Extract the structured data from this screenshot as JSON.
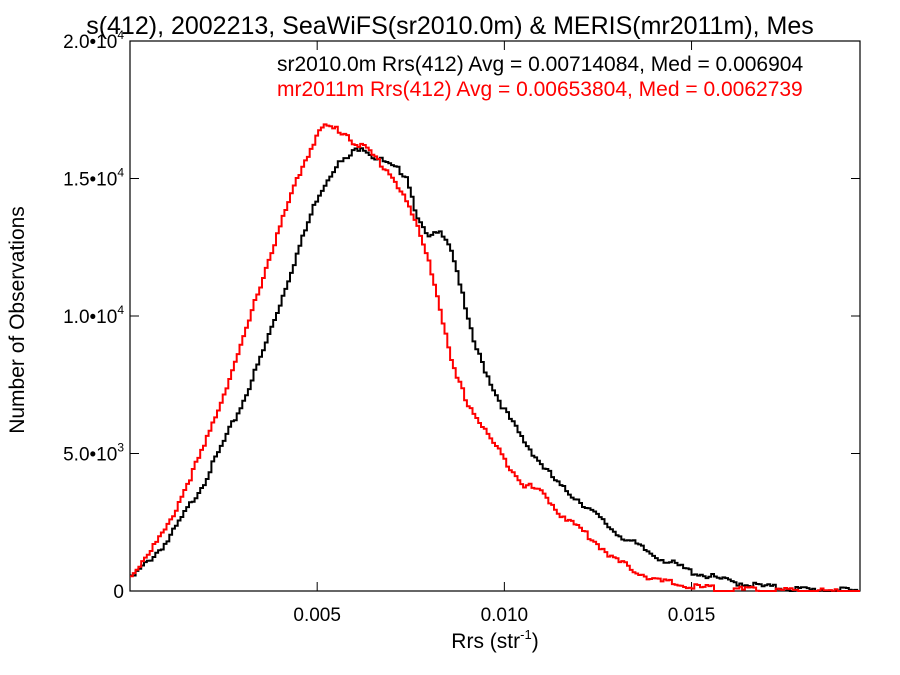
{
  "chart_data": {
    "type": "line",
    "title": "s(412), 2002213, SeaWiFS(sr2010.0m) & MERIS(mr2011m), Mes",
    "xlabel": "Rrs (str",
    "xlabel_sup": "-1",
    "xlabel_end": ")",
    "ylabel": "Number of Observations",
    "xlim": [
      0.0,
      0.0195
    ],
    "ylim": [
      0,
      20000
    ],
    "xticks": [
      {
        "value": 0.005,
        "label": "0.005"
      },
      {
        "value": 0.01,
        "label": "0.010"
      },
      {
        "value": 0.015,
        "label": "0.015"
      }
    ],
    "yticks": [
      {
        "value": 0,
        "mant": "0",
        "exp": ""
      },
      {
        "value": 5000,
        "mant": "5.0•10",
        "exp": "3"
      },
      {
        "value": 10000,
        "mant": "1.0•10",
        "exp": "4"
      },
      {
        "value": 15000,
        "mant": "1.5•10",
        "exp": "4"
      },
      {
        "value": 20000,
        "mant": "2.0•10",
        "exp": "4"
      }
    ],
    "grid": false,
    "series": [
      {
        "name": "sr2010.0m",
        "label": "sr2010.0m Rrs(412) Avg = 0.00714084, Med = 0.006904",
        "color": "#000000",
        "x": [
          0.0,
          0.001,
          0.002,
          0.003,
          0.0035,
          0.004,
          0.0045,
          0.005,
          0.0055,
          0.0058,
          0.006,
          0.0062,
          0.0065,
          0.0068,
          0.007,
          0.0072,
          0.0074,
          0.0076,
          0.0078,
          0.008,
          0.0082,
          0.0084,
          0.0086,
          0.0088,
          0.009,
          0.0092,
          0.0095,
          0.0098,
          0.01,
          0.0105,
          0.011,
          0.0115,
          0.012,
          0.0125,
          0.013,
          0.014,
          0.015,
          0.016,
          0.017,
          0.018,
          0.019,
          0.0195
        ],
        "values": [
          400,
          1800,
          4000,
          6800,
          8500,
          10400,
          12400,
          14300,
          15500,
          15700,
          16000,
          16200,
          15800,
          15600,
          15400,
          15300,
          15100,
          14000,
          13200,
          12800,
          13000,
          13000,
          12400,
          11300,
          10000,
          9000,
          8000,
          7100,
          6600,
          5500,
          4600,
          3800,
          3300,
          2700,
          2100,
          1300,
          700,
          350,
          150,
          50,
          10,
          0
        ]
      },
      {
        "name": "mr2011m",
        "label": "mr2011m Rrs(412) Avg = 0.00653804, Med = 0.0062739",
        "color": "#ff0000",
        "x": [
          0.0,
          0.001,
          0.002,
          0.003,
          0.0035,
          0.004,
          0.0045,
          0.005,
          0.0052,
          0.0055,
          0.0058,
          0.006,
          0.0063,
          0.0066,
          0.007,
          0.0073,
          0.0076,
          0.008,
          0.0083,
          0.0086,
          0.009,
          0.0095,
          0.01,
          0.0105,
          0.011,
          0.0115,
          0.012,
          0.0125,
          0.013,
          0.014,
          0.015,
          0.016,
          0.017,
          0.018,
          0.019,
          0.0195
        ],
        "values": [
          500,
          2300,
          5300,
          9000,
          11200,
          13200,
          15100,
          16600,
          16900,
          16800,
          16600,
          16300,
          16100,
          15700,
          15100,
          14400,
          13500,
          12000,
          10200,
          8200,
          6900,
          5800,
          4800,
          3900,
          3600,
          2800,
          2300,
          1700,
          1100,
          400,
          150,
          50,
          20,
          5,
          0,
          0
        ]
      }
    ]
  }
}
